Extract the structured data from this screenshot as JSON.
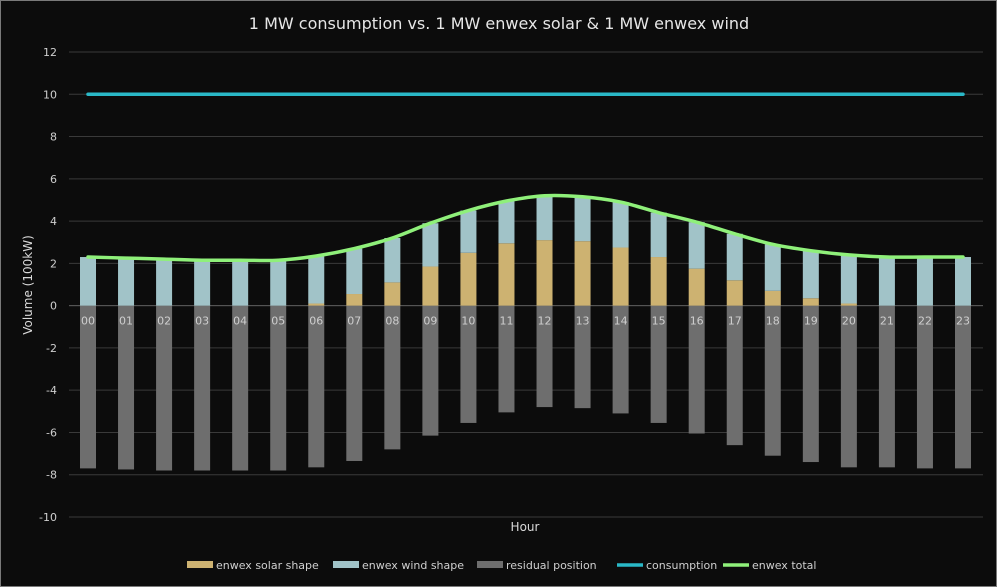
{
  "chart_data": {
    "type": "bar",
    "title": "1 MW consumption vs. 1 MW enwex solar & 1 MW enwex wind",
    "xlabel": "Hour",
    "ylabel": "Volume (100kW)",
    "ylim": [
      -10,
      12
    ],
    "yticks": [
      -10,
      -8,
      -6,
      -4,
      -2,
      0,
      2,
      4,
      6,
      8,
      10,
      12
    ],
    "grid": true,
    "legend_position": "bottom",
    "categories": [
      "00",
      "01",
      "02",
      "03",
      "04",
      "05",
      "06",
      "07",
      "08",
      "09",
      "10",
      "11",
      "12",
      "13",
      "14",
      "15",
      "16",
      "17",
      "18",
      "19",
      "20",
      "21",
      "22",
      "23"
    ],
    "series": [
      {
        "name": "enwex solar shape",
        "type": "stacked-bar",
        "color": "#cdb271",
        "values": [
          0,
          0,
          0,
          0,
          0,
          0,
          0.1,
          0.55,
          1.1,
          1.85,
          2.5,
          2.95,
          3.1,
          3.05,
          2.75,
          2.3,
          1.75,
          1.2,
          0.7,
          0.35,
          0.1,
          0,
          0,
          0
        ]
      },
      {
        "name": "enwex wind shape",
        "type": "stacked-bar",
        "color": "#a1c3c8",
        "values": [
          2.3,
          2.25,
          2.2,
          2.15,
          2.15,
          2.15,
          2.25,
          2.15,
          2.1,
          2.05,
          2.0,
          2.0,
          2.1,
          2.1,
          2.15,
          2.1,
          2.2,
          2.2,
          2.2,
          2.25,
          2.3,
          2.3,
          2.3,
          2.3
        ]
      },
      {
        "name": "residual position",
        "type": "bar",
        "color": "#6e6e6e",
        "values": [
          -7.7,
          -7.75,
          -7.8,
          -7.8,
          -7.8,
          -7.8,
          -7.65,
          -7.35,
          -6.8,
          -6.15,
          -5.55,
          -5.05,
          -4.8,
          -4.85,
          -5.1,
          -5.55,
          -6.05,
          -6.6,
          -7.1,
          -7.4,
          -7.65,
          -7.65,
          -7.7,
          -7.7
        ]
      },
      {
        "name": "consumption",
        "type": "line",
        "color": "#2ab8c7",
        "values": [
          10,
          10,
          10,
          10,
          10,
          10,
          10,
          10,
          10,
          10,
          10,
          10,
          10,
          10,
          10,
          10,
          10,
          10,
          10,
          10,
          10,
          10,
          10,
          10
        ]
      },
      {
        "name": "enwex total",
        "type": "line",
        "color": "#8ff07a",
        "values": [
          2.3,
          2.25,
          2.2,
          2.15,
          2.15,
          2.15,
          2.35,
          2.7,
          3.2,
          3.9,
          4.5,
          4.95,
          5.2,
          5.15,
          4.9,
          4.4,
          3.95,
          3.4,
          2.9,
          2.6,
          2.4,
          2.3,
          2.3,
          2.3
        ]
      }
    ]
  }
}
